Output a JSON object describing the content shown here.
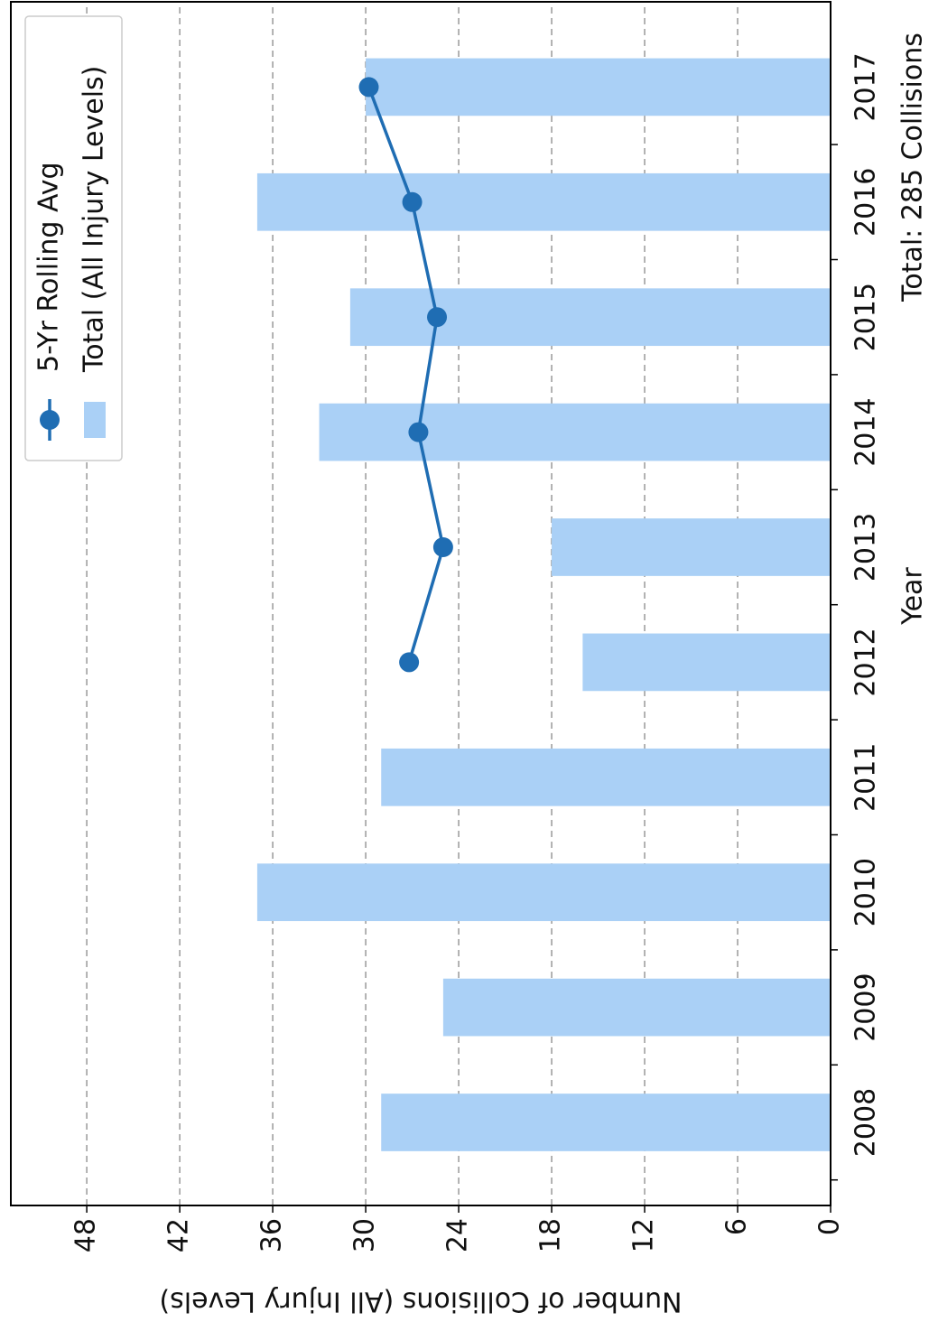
{
  "chart_data": {
    "type": "bar",
    "xlabel": "Year",
    "annotation": "Total: 285 Collisions",
    "ylabel": "Number of Collisions (All Injury Levels)",
    "categories": [
      "2008",
      "2009",
      "2010",
      "2011",
      "2012",
      "2013",
      "2014",
      "2015",
      "2016",
      "2017"
    ],
    "series": [
      {
        "name": "5-Yr Rolling Avg",
        "type": "line",
        "color": "#1f6db3",
        "values": [
          null,
          null,
          null,
          null,
          27.2,
          25,
          26.6,
          25.4,
          27,
          29.8
        ]
      },
      {
        "name": "Total (All Injury Levels)",
        "type": "bar",
        "color": "#aad0f6",
        "values": [
          29,
          25,
          37,
          29,
          16,
          18,
          33,
          31,
          37,
          30
        ]
      }
    ],
    "ylim": [
      0,
      52.9
    ],
    "yticks": [
      0,
      6,
      12,
      18,
      24,
      30,
      36,
      42,
      48
    ],
    "grid": true,
    "legend": "upper right"
  }
}
